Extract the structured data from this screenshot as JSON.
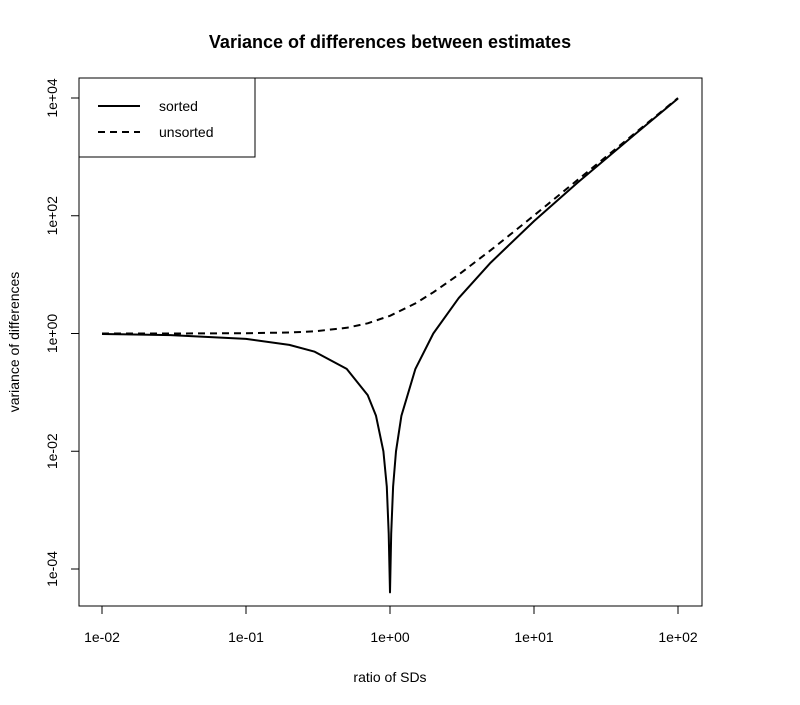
{
  "chart_data": {
    "type": "line",
    "title": "Variance of differences between estimates",
    "xlabel": "ratio of SDs",
    "ylabel": "variance of differences",
    "x_scale": "log",
    "y_scale": "log",
    "xlim": [
      0.01,
      100
    ],
    "ylim": [
      2e-05,
      20000
    ],
    "x_ticks": [
      0.01,
      0.1,
      1,
      10,
      100
    ],
    "x_tick_labels": [
      "1e-02",
      "1e-01",
      "1e+00",
      "1e+01",
      "1e+02"
    ],
    "y_ticks": [
      0.0001,
      0.01,
      1,
      100,
      10000
    ],
    "y_tick_labels": [
      "1e-04",
      "1e-02",
      "1e+00",
      "1e+02",
      "1e+04"
    ],
    "grid": false,
    "legend_position": "top-left",
    "series": [
      {
        "name": "sorted",
        "line_style": "solid",
        "color": "#000000",
        "x": [
          0.01,
          0.03,
          0.1,
          0.2,
          0.3,
          0.5,
          0.7,
          0.8,
          0.9,
          0.95,
          0.98,
          1.0,
          1.02,
          1.05,
          1.1,
          1.2,
          1.5,
          2,
          3,
          5,
          10,
          20,
          50,
          100
        ],
        "y": [
          0.98,
          0.94,
          0.81,
          0.64,
          0.49,
          0.25,
          0.09,
          0.04,
          0.01,
          0.0025,
          0.0004,
          4e-05,
          0.0004,
          0.0025,
          0.01,
          0.04,
          0.25,
          1,
          4,
          16,
          81,
          361,
          2401,
          9801
        ]
      },
      {
        "name": "unsorted",
        "line_style": "dashed",
        "color": "#000000",
        "x": [
          0.01,
          0.03,
          0.1,
          0.2,
          0.3,
          0.5,
          0.7,
          1.0,
          1.5,
          2,
          3,
          5,
          10,
          20,
          50,
          100
        ],
        "y": [
          1.0,
          1.001,
          1.01,
          1.04,
          1.09,
          1.25,
          1.49,
          2,
          3.25,
          5,
          10,
          26,
          101,
          401,
          2501,
          10001
        ]
      }
    ]
  }
}
